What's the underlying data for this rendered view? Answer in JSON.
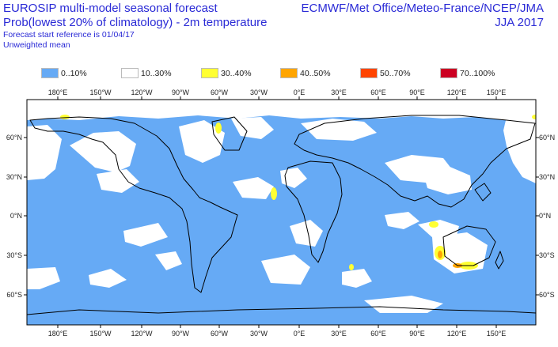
{
  "header": {
    "title_line1": "EUROSIP multi-model seasonal forecast",
    "title_line2": "Prob(lowest 20% of climatology) - 2m temperature",
    "start_ref": "Forecast start reference is 01/04/17",
    "mean_type": "Unweighted mean",
    "centres": "ECMWF/Met Office/Meteo-France/NCEP/JMA",
    "season": "JJA 2017"
  },
  "legend": [
    {
      "label": "0..10%",
      "color": "#66aaf5"
    },
    {
      "label": "10..30%",
      "color": "#ffffff"
    },
    {
      "label": "30..40%",
      "color": "#ffff33"
    },
    {
      "label": "40..50%",
      "color": "#ffa500"
    },
    {
      "label": "50..70%",
      "color": "#ff4400"
    },
    {
      "label": "70..100%",
      "color": "#cc0022"
    }
  ],
  "axes": {
    "lon_ticks": [
      "180°E",
      "150°W",
      "120°W",
      "90°W",
      "60°W",
      "30°W",
      "0°E",
      "30°E",
      "60°E",
      "90°E",
      "120°E",
      "150°E"
    ],
    "lat_ticks": [
      "60°N",
      "30°N",
      "0°N",
      "30°S",
      "60°S"
    ]
  }
}
